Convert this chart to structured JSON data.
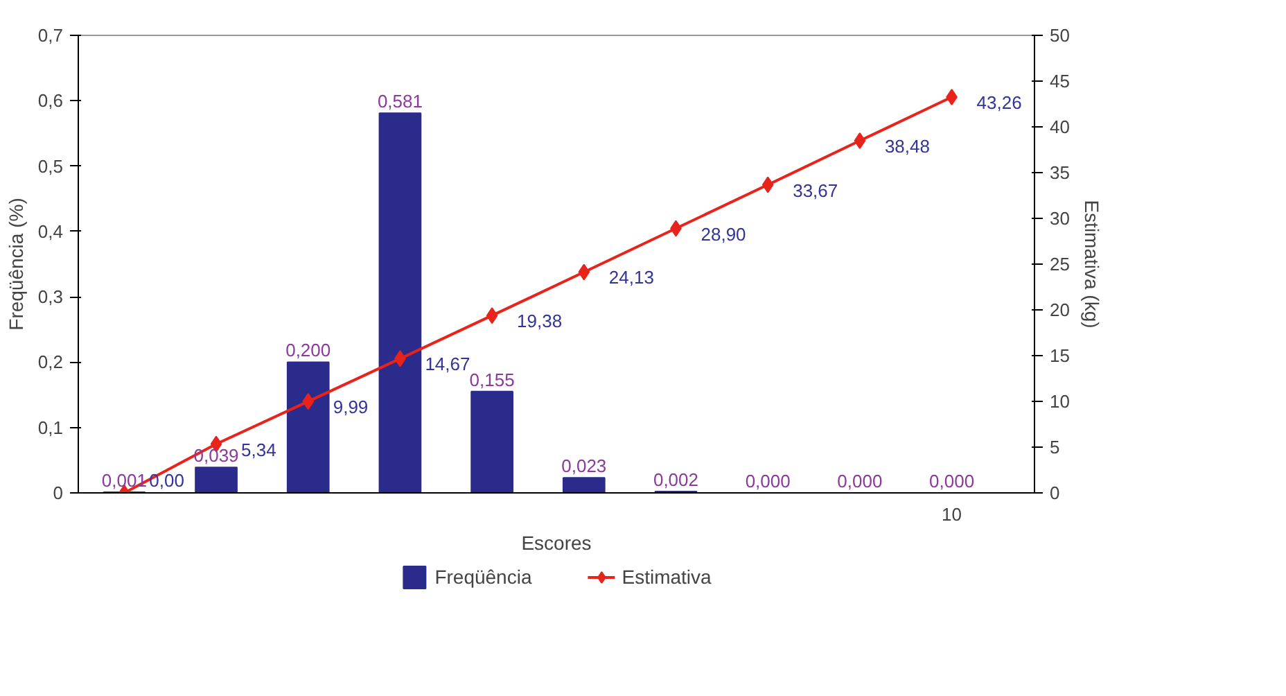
{
  "chart_data": {
    "type": "bar",
    "xlabel": "Escores",
    "ylabel": "Freqüência (%)",
    "y2label": "Estimativa (kg)",
    "categories": [
      null,
      null,
      null,
      null,
      null,
      null,
      null,
      null,
      null,
      "10"
    ],
    "series": [
      {
        "name": "Freqüência",
        "color": "#2b2b8c",
        "values": [
          0.001,
          0.039,
          0.2,
          0.581,
          0.155,
          0.023,
          0.002,
          0.0,
          0.0,
          0.0
        ],
        "value_labels": [
          "0,001",
          "0,039",
          "0,200",
          "0,581",
          "0,155",
          "0,023",
          "0,002",
          "0,000",
          "0,000",
          "0,000"
        ]
      },
      {
        "name": "Estimativa",
        "type": "line",
        "axis": "y2",
        "color": "#e8231c",
        "marker": "diamond",
        "line_style": "solid",
        "values": [
          0.0,
          5.34,
          9.99,
          14.67,
          19.38,
          24.13,
          28.9,
          33.67,
          38.48,
          43.26
        ],
        "value_labels": [
          "0,00",
          "5,34",
          "9,99",
          "14,67",
          "19,38",
          "24,13",
          "28,90",
          "33,67",
          "38,48",
          "43,26"
        ]
      }
    ],
    "ylim": [
      0,
      0.7
    ],
    "yticks": [
      0,
      {
        "value": 0.1,
        "label": "0,1"
      },
      {
        "value": 0.2,
        "label": "0,2"
      },
      {
        "value": 0.3,
        "label": "0,3"
      },
      {
        "value": 0.4,
        "label": "0,4"
      },
      {
        "value": 0.5,
        "label": "0,5"
      },
      {
        "value": 0.6,
        "label": "0,6"
      },
      {
        "value": 0.7,
        "label": "0,7"
      }
    ],
    "y2lim": [
      0,
      50
    ],
    "y2ticks": [
      0,
      5,
      10,
      15,
      20,
      25,
      30,
      35,
      40,
      45,
      50
    ],
    "grid": false,
    "legend": "bottom"
  }
}
